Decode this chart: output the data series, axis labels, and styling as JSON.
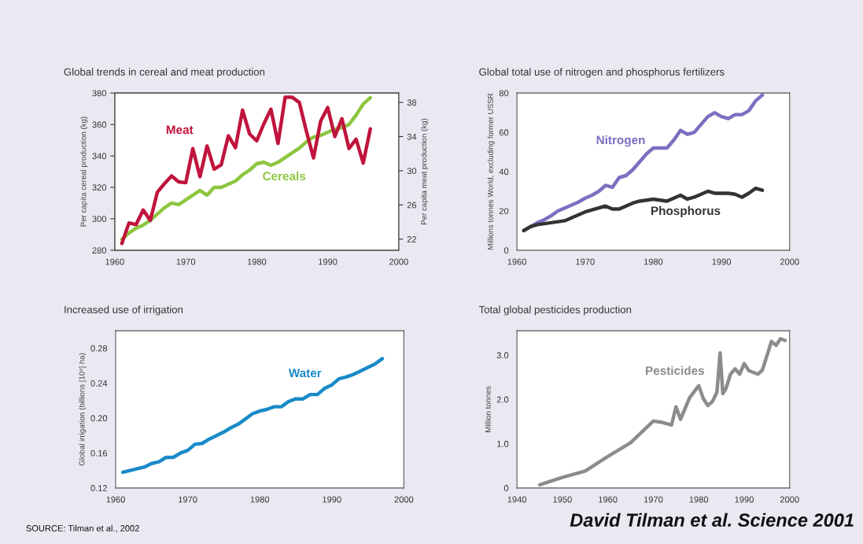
{
  "chart_data": [
    {
      "type": "line",
      "title": "Global trends in cereal and meat production",
      "ylabel": "Per capita cereal production (kg)",
      "y2label": "Per capita meat production (kg)",
      "xlim": [
        1960,
        2000
      ],
      "xticks": [
        1960,
        1970,
        1980,
        1990,
        2000
      ],
      "ylim": [
        280,
        380
      ],
      "yticks": [
        280,
        300,
        320,
        340,
        360,
        380
      ],
      "y2lim": [
        20.7,
        39.1
      ],
      "y2ticks": [
        22,
        26,
        30,
        34,
        38
      ],
      "grid": false,
      "legend": false,
      "x": [
        1961,
        1962,
        1963,
        1964,
        1965,
        1966,
        1967,
        1968,
        1969,
        1970,
        1971,
        1972,
        1973,
        1974,
        1975,
        1976,
        1977,
        1978,
        1979,
        1980,
        1981,
        1982,
        1983,
        1984,
        1985,
        1986,
        1987,
        1988,
        1989,
        1990,
        1991,
        1992,
        1993,
        1994,
        1995,
        1996
      ],
      "series": [
        {
          "name": "Meat",
          "color": "#c0143c",
          "axis": "y2",
          "values": [
            21.5,
            23.9,
            23.7,
            25.4,
            24.2,
            27.5,
            28.5,
            29.4,
            28.7,
            28.6,
            32.6,
            29.3,
            32.9,
            30.2,
            30.7,
            34.1,
            32.7,
            37.1,
            34.3,
            33.5,
            35.5,
            37.2,
            33.2,
            38.6,
            38.6,
            38.0,
            34.6,
            31.5,
            35.8,
            37.4,
            34.0,
            36.1,
            32.6,
            33.7,
            30.9,
            34.9
          ]
        },
        {
          "name": "Cereals",
          "color": "#8cc63f",
          "values": [
            287,
            291,
            294,
            296,
            299,
            303,
            307,
            310,
            309,
            312,
            315,
            318,
            315,
            320,
            320,
            322,
            324,
            328,
            331,
            335,
            336,
            334,
            336,
            339,
            342,
            345,
            349,
            352,
            353,
            355,
            357,
            358,
            360,
            366,
            373,
            377
          ]
        }
      ]
    },
    {
      "type": "line",
      "title": "Global total use of nitrogen and phosphorus fertilizers",
      "ylabel": "Millions tonnes World, excluding former USSR",
      "xlim": [
        1960,
        2000
      ],
      "xticks": [
        1960,
        1970,
        1980,
        1990,
        2000
      ],
      "ylim": [
        0,
        80
      ],
      "yticks": [
        0,
        20,
        40,
        60,
        80
      ],
      "grid": false,
      "legend": false,
      "x": [
        1961,
        1962,
        1963,
        1964,
        1965,
        1966,
        1967,
        1968,
        1969,
        1970,
        1971,
        1972,
        1973,
        1974,
        1975,
        1976,
        1977,
        1978,
        1979,
        1980,
        1981,
        1982,
        1983,
        1984,
        1985,
        1986,
        1987,
        1988,
        1989,
        1990,
        1991,
        1992,
        1993,
        1994,
        1995,
        1996
      ],
      "series": [
        {
          "name": "Nitrogen",
          "color": "#7b6fc0",
          "values": [
            10,
            12,
            14,
            15.5,
            17.5,
            20,
            21.5,
            23,
            24.5,
            26.5,
            28,
            30,
            33,
            32,
            37,
            38,
            41,
            45,
            49,
            52,
            52,
            52,
            56,
            61,
            59,
            60,
            64,
            68,
            70,
            68,
            67,
            69,
            69,
            71,
            76,
            79
          ]
        },
        {
          "name": "Phosphorus",
          "color": "#333333",
          "values": [
            10,
            12,
            13,
            13.5,
            14,
            14.5,
            15,
            16.5,
            18,
            19.5,
            20.5,
            21.5,
            22.5,
            21,
            21,
            22.5,
            24,
            25,
            25.5,
            26,
            25.5,
            25,
            26.5,
            28,
            26,
            27,
            28.5,
            30,
            29,
            29,
            29,
            28.5,
            27,
            29,
            31.5,
            30.5
          ]
        }
      ]
    },
    {
      "type": "line",
      "title": "Increased use of irrigation",
      "ylabel": "Global irrigation (billions [10⁹] ha)",
      "xlim": [
        1960,
        2000
      ],
      "xticks": [
        1960,
        1970,
        1980,
        1990,
        2000
      ],
      "ylim": [
        0.12,
        0.3
      ],
      "yticks": [
        {
          "value": 0.12,
          "label": "0.12"
        },
        {
          "value": 0.16,
          "label": "0.16"
        },
        {
          "value": 0.2,
          "label": "0.20"
        },
        {
          "value": 0.24,
          "label": "0.24"
        },
        {
          "value": 0.28,
          "label": "0.28"
        }
      ],
      "grid": false,
      "legend": false,
      "annotations": [
        "SOURCE: Tilman et al., 2002"
      ],
      "x": [
        1961,
        1962,
        1963,
        1964,
        1965,
        1966,
        1967,
        1968,
        1969,
        1970,
        1971,
        1972,
        1973,
        1974,
        1975,
        1976,
        1977,
        1978,
        1979,
        1980,
        1981,
        1982,
        1983,
        1984,
        1985,
        1986,
        1987,
        1988,
        1989,
        1990,
        1991,
        1992,
        1993,
        1994,
        1995,
        1996,
        1997
      ],
      "series": [
        {
          "name": "Water",
          "color": "#1a8ac8",
          "values": [
            0.138,
            0.14,
            0.142,
            0.144,
            0.148,
            0.15,
            0.155,
            0.155,
            0.16,
            0.163,
            0.17,
            0.171,
            0.176,
            0.18,
            0.184,
            0.189,
            0.193,
            0.199,
            0.205,
            0.208,
            0.21,
            0.213,
            0.213,
            0.219,
            0.222,
            0.222,
            0.227,
            0.227,
            0.234,
            0.238,
            0.245,
            0.247,
            0.25,
            0.254,
            0.258,
            0.262,
            0.268
          ]
        }
      ]
    },
    {
      "type": "line",
      "title": "Total global pesticides production",
      "ylabel": "Million tonnes",
      "xlim": [
        1940,
        2000
      ],
      "xticks": [
        1940,
        1950,
        1960,
        1970,
        1980,
        1990,
        2000
      ],
      "ylim": [
        0,
        3.55
      ],
      "yticks": [
        0,
        {
          "value": 1,
          "label": "1.0"
        },
        {
          "value": 2,
          "label": "2.0"
        },
        {
          "value": 3,
          "label": "3.0"
        }
      ],
      "grid": false,
      "legend": false,
      "annotations": [
        "David Tilman et al. Science 2001"
      ],
      "x": [
        1945,
        1950,
        1955,
        1960,
        1965,
        1970,
        1972,
        1974,
        1975,
        1976,
        1978,
        1980,
        1981,
        1982,
        1983,
        1984,
        1984.7,
        1985.3,
        1986,
        1987,
        1988,
        1989,
        1990,
        1991,
        1993,
        1994,
        1996,
        1997,
        1998,
        1999
      ],
      "series": [
        {
          "name": "Pesticides",
          "color": "#8c8c8c",
          "values": [
            0.07,
            0.24,
            0.38,
            0.71,
            1.02,
            1.51,
            1.48,
            1.42,
            1.83,
            1.55,
            2.04,
            2.31,
            2.02,
            1.86,
            1.95,
            2.16,
            3.05,
            2.13,
            2.25,
            2.57,
            2.69,
            2.57,
            2.81,
            2.65,
            2.57,
            2.66,
            3.31,
            3.22,
            3.37,
            3.33
          ]
        }
      ]
    }
  ]
}
